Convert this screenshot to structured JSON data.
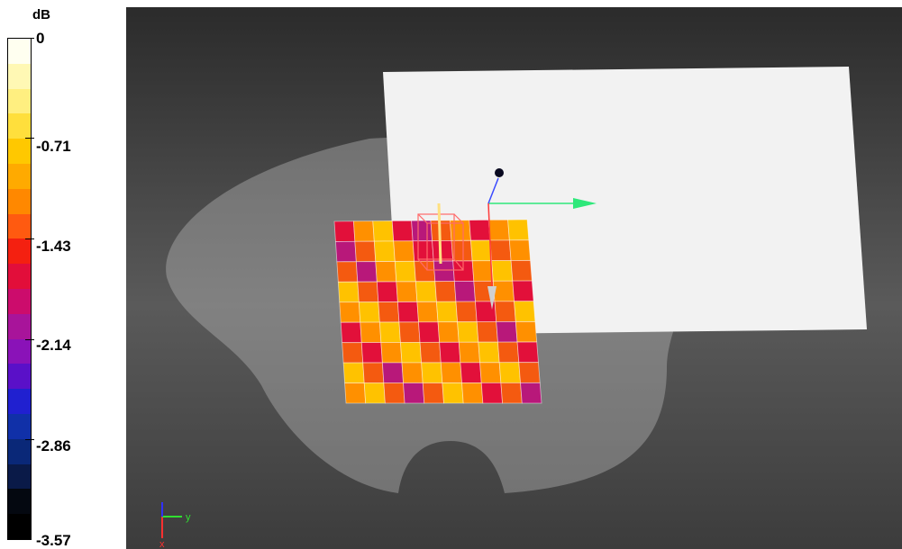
{
  "legend": {
    "unit": "dB",
    "ticks": [
      "0",
      "-0.71",
      "-1.43",
      "-2.14",
      "-2.86",
      "-3.57"
    ],
    "colors": [
      "#fffff0",
      "#fff8b4",
      "#ffef80",
      "#ffdf3c",
      "#ffc800",
      "#ffaa00",
      "#ff8800",
      "#ff5a10",
      "#f42010",
      "#e20e3a",
      "#cc0c6c",
      "#a8149a",
      "#8a12b8",
      "#5a10c8",
      "#2020d0",
      "#1030a8",
      "#0a2878",
      "#0a1a48",
      "#040810",
      "#000000"
    ]
  },
  "viewport": {
    "background": "#3a3a3a",
    "axes_labels": {
      "y": "y",
      "x": "x"
    }
  },
  "heatmap": {
    "rows": 9,
    "cols": 10,
    "palette": [
      "#6a1fb4",
      "#b8187a",
      "#e2103a",
      "#f45a10",
      "#ff9000",
      "#ffc200",
      "#ffe27a"
    ],
    "values": [
      [
        2,
        4,
        5,
        2,
        1,
        3,
        4,
        2,
        4,
        5
      ],
      [
        1,
        3,
        5,
        4,
        2,
        2,
        3,
        5,
        3,
        4
      ],
      [
        3,
        1,
        4,
        5,
        3,
        1,
        2,
        4,
        5,
        3
      ],
      [
        5,
        3,
        2,
        4,
        5,
        3,
        1,
        3,
        4,
        2
      ],
      [
        4,
        5,
        3,
        2,
        4,
        5,
        3,
        2,
        3,
        5
      ],
      [
        2,
        4,
        5,
        3,
        2,
        4,
        5,
        3,
        1,
        4
      ],
      [
        3,
        2,
        4,
        5,
        3,
        2,
        4,
        5,
        3,
        2
      ],
      [
        5,
        3,
        1,
        4,
        5,
        4,
        2,
        4,
        5,
        3
      ],
      [
        4,
        5,
        3,
        1,
        3,
        5,
        4,
        2,
        3,
        1
      ]
    ]
  }
}
